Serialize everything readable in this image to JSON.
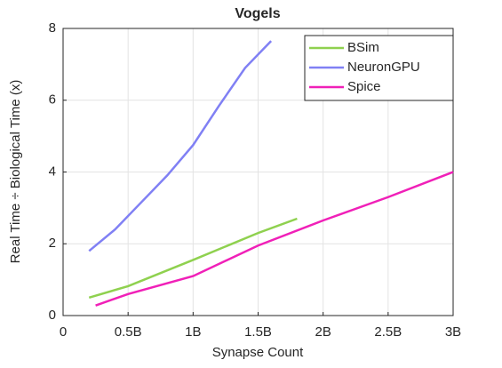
{
  "chart_data": {
    "type": "line",
    "title": "Vogels",
    "x_label": "Synapse Count",
    "y_label": "Real Time  ÷  Biological Time (x)",
    "xlim": [
      0,
      3000000000
    ],
    "xticks": [
      0,
      {
        "value": 500000000,
        "label": "0.5B"
      },
      {
        "value": 1000000000,
        "label": "1B"
      },
      {
        "value": 1500000000,
        "label": "1.5B"
      },
      {
        "value": 2000000000,
        "label": "2B"
      },
      {
        "value": 2500000000,
        "label": "2.5B"
      },
      {
        "value": 3000000000,
        "label": "3B"
      }
    ],
    "ylim": [
      0,
      8
    ],
    "yticks": [
      0,
      2,
      4,
      6,
      8
    ],
    "grid": true,
    "legend": "top-right",
    "series": [
      {
        "name": "BSim",
        "color": "#8fd14f",
        "x": [
          200000000,
          500000000,
          1000000000,
          1500000000,
          1800000000
        ],
        "values": [
          0.5,
          0.82,
          1.55,
          2.3,
          2.7
        ]
      },
      {
        "name": "NeuronGPU",
        "color": "#8080f4",
        "x": [
          200000000,
          400000000,
          600000000,
          800000000,
          1000000000,
          1200000000,
          1400000000,
          1600000000
        ],
        "values": [
          1.8,
          2.4,
          3.15,
          3.9,
          4.75,
          5.85,
          6.9,
          7.65
        ]
      },
      {
        "name": "Spice",
        "color": "#f020b8",
        "x": [
          250000000,
          500000000,
          1000000000,
          1500000000,
          2000000000,
          2500000000,
          3000000000
        ],
        "values": [
          0.28,
          0.6,
          1.1,
          1.95,
          2.65,
          3.3,
          4.0
        ]
      }
    ]
  }
}
